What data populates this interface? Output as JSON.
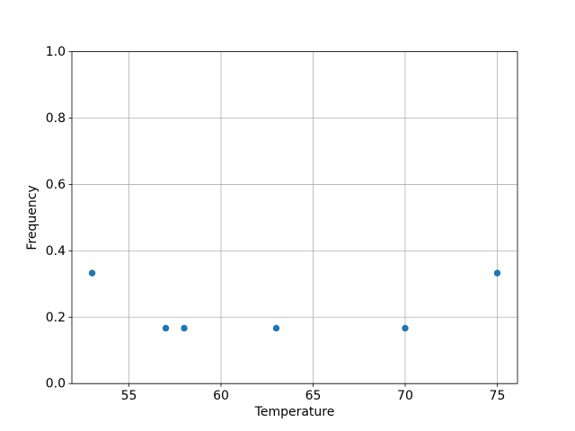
{
  "chart_data": {
    "type": "scatter",
    "title": "",
    "xlabel": "Temperature",
    "ylabel": "Frequency",
    "x": [
      53,
      57,
      58,
      63,
      70,
      75
    ],
    "y": [
      0.333,
      0.167,
      0.167,
      0.167,
      0.167,
      0.333
    ],
    "xlim": [
      51.9,
      76.1
    ],
    "ylim": [
      0.0,
      1.0
    ],
    "xticks": [
      55,
      60,
      65,
      70,
      75
    ],
    "yticks": [
      0,
      0.2,
      0.4,
      0.6,
      0.8,
      1
    ],
    "grid": true,
    "legend": "none",
    "marker_color": "#1f77b4",
    "grid_color": "#b0b0b0",
    "spine_color": "#000000",
    "background_color": "#ffffff"
  }
}
